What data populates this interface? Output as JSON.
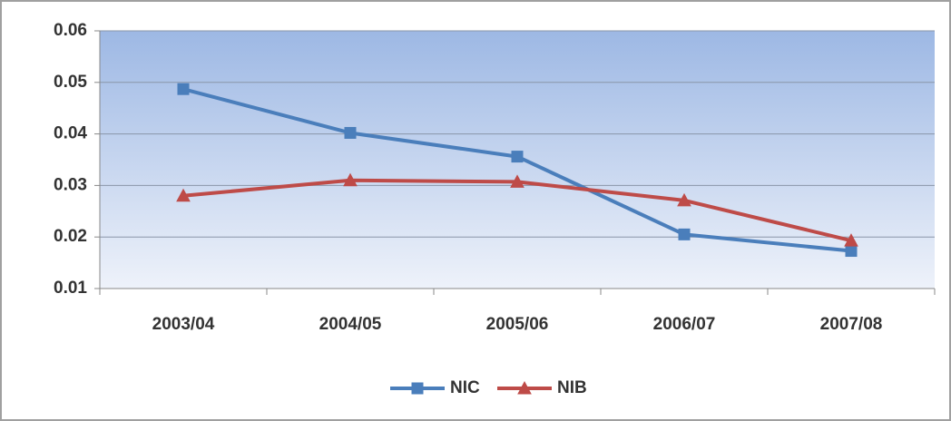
{
  "chart_data": {
    "type": "line",
    "categories": [
      "2003/04",
      "2004/05",
      "2005/06",
      "2006/07",
      "2007/08"
    ],
    "series": [
      {
        "name": "NIC",
        "color": "#4a7ebb",
        "marker": "square",
        "values": [
          0.0487,
          0.0402,
          0.0356,
          0.0205,
          0.0173
        ]
      },
      {
        "name": "NIB",
        "color": "#be4b48",
        "marker": "triangle",
        "values": [
          0.028,
          0.031,
          0.0307,
          0.0271,
          0.0193
        ]
      }
    ],
    "ylim": [
      0.01,
      0.06
    ],
    "yticks": [
      0.01,
      0.02,
      0.03,
      0.04,
      0.05,
      0.06
    ],
    "grid": true,
    "legend": "bottom"
  }
}
